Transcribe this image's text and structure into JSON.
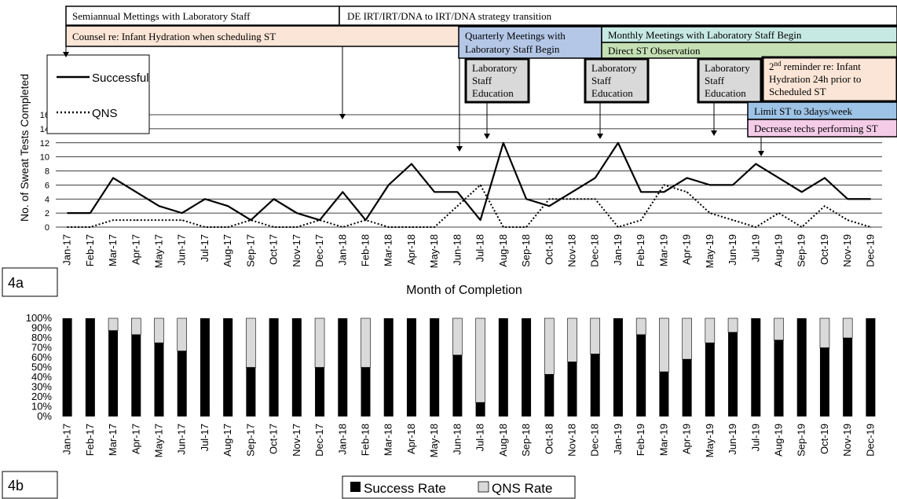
{
  "panel_a": {
    "label": "4a",
    "annotations": [
      {
        "id": "semiannual",
        "text": "Semiannual Mettings with Laboratory Staff",
        "fill": "#ffffff"
      },
      {
        "id": "de-irt",
        "text": "DE IRT/IRT/DNA to IRT/DNA strategy transition",
        "fill": "#ffffff"
      },
      {
        "id": "counsel",
        "text": "Counsel re: Infant Hydration when scheduling ST",
        "fill": "#fbe5d6"
      },
      {
        "id": "quarterly",
        "text": "Quarterly Meetings with Laboratory Staff Begin",
        "fill": "#b4c7e7"
      },
      {
        "id": "monthly",
        "text": "Monthly Meetings with Laboratory Staff Begin",
        "fill": "#c7e9e3"
      },
      {
        "id": "direct-obs",
        "text": "Direct ST Observation",
        "fill": "#c5e0b4"
      },
      {
        "id": "lab-edu-1",
        "text": "Laboratory Staff Education",
        "fill": "#d9d9d9"
      },
      {
        "id": "lab-edu-2",
        "text": "Laboratory Staff Education",
        "fill": "#d9d9d9"
      },
      {
        "id": "lab-edu-3",
        "text": "Laboratory Staff Education",
        "fill": "#d9d9d9"
      },
      {
        "id": "reminder",
        "sup": "nd",
        "text_pre": "2",
        "text_post": " reminder re: Infant Hydration 24h prior to Scheduled ST",
        "fill": "#fbe5d6"
      },
      {
        "id": "limit",
        "text": "Limit ST to 3days/week",
        "fill": "#9dc3e6"
      },
      {
        "id": "decrease",
        "text": "Decrease techs performing ST",
        "fill": "#f4cce8"
      }
    ]
  },
  "panel_b": {
    "label": "4b"
  },
  "chart_data": [
    {
      "type": "line",
      "xlabel": "Month of Completion",
      "ylabel": "No. of Sweat Tests Completed",
      "ylim": [
        0,
        16
      ],
      "yticks": [
        0,
        2,
        4,
        6,
        8,
        10,
        12,
        14,
        16
      ],
      "grid": true,
      "categories": [
        "Jan-17",
        "Feb-17",
        "Mar-17",
        "Apr-17",
        "May-17",
        "Jun-17",
        "Jul-17",
        "Aug-17",
        "Sep-17",
        "Oct-17",
        "Nov-17",
        "Dec-17",
        "Jan-18",
        "Feb-18",
        "Mar-18",
        "Apr-18",
        "May-18",
        "Jun-18",
        "Jul-18",
        "Aug-18",
        "Sep-18",
        "Oct-18",
        "Nov-18",
        "Dec-18",
        "Jan-19",
        "Feb-19",
        "Mar-19",
        "Apr-19",
        "May-19",
        "Jun-19",
        "Jul-19",
        "Aug-19",
        "Sep-19",
        "Oct-19",
        "Nov-19",
        "Dec-19"
      ],
      "legend_position": "top-left",
      "series": [
        {
          "name": "Successful",
          "style": "solid",
          "values": [
            2,
            2,
            7,
            5,
            3,
            2,
            4,
            3,
            1,
            4,
            2,
            1,
            5,
            1,
            6,
            9,
            5,
            5,
            1,
            12,
            4,
            3,
            5,
            7,
            12,
            5,
            5,
            7,
            6,
            6,
            9,
            7,
            5,
            7,
            4,
            4
          ]
        },
        {
          "name": "QNS",
          "style": "dotted",
          "values": [
            0,
            0,
            1,
            1,
            1,
            1,
            0,
            0,
            1,
            0,
            0,
            1,
            0,
            1,
            0,
            0,
            0,
            3,
            6,
            0,
            0,
            4,
            4,
            4,
            0,
            1,
            6,
            5,
            2,
            1,
            0,
            2,
            0,
            3,
            1,
            0
          ]
        }
      ]
    },
    {
      "type": "bar",
      "stacked": true,
      "ylim": [
        0,
        100
      ],
      "yticks": [
        "0%",
        "10%",
        "20%",
        "30%",
        "40%",
        "50%",
        "60%",
        "70%",
        "80%",
        "90%",
        "100%"
      ],
      "categories": [
        "Jan-17",
        "Feb-17",
        "Mar-17",
        "Apr-17",
        "May-17",
        "Jun-17",
        "Jul-17",
        "Aug-17",
        "Sep-17",
        "Oct-17",
        "Nov-17",
        "Dec-17",
        "Jan-18",
        "Feb-18",
        "Mar-18",
        "Apr-18",
        "May-18",
        "Jun-18",
        "Jul-18",
        "Aug-18",
        "Sep-18",
        "Oct-18",
        "Nov-18",
        "Dec-18",
        "Jan-19",
        "Feb-19",
        "Mar-19",
        "Apr-19",
        "May-19",
        "Jun-19",
        "Jul-19",
        "Aug-19",
        "Sep-19",
        "Oct-19",
        "Nov-19",
        "Dec-19"
      ],
      "legend_position": "bottom",
      "series": [
        {
          "name": "Success Rate",
          "color": "#000000",
          "values": [
            100,
            100,
            87.5,
            83.3,
            75,
            66.7,
            100,
            100,
            50,
            100,
            100,
            50,
            100,
            50,
            100,
            100,
            100,
            62.5,
            14.3,
            100,
            100,
            42.9,
            55.6,
            63.6,
            100,
            83.3,
            45.5,
            58.3,
            75,
            85.7,
            100,
            77.8,
            100,
            70,
            80,
            100
          ]
        },
        {
          "name": "QNS Rate",
          "color": "#d9d9d9",
          "values": [
            0,
            0,
            12.5,
            16.7,
            25,
            33.3,
            0,
            0,
            50,
            0,
            0,
            50,
            0,
            50,
            0,
            0,
            0,
            37.5,
            85.7,
            0,
            0,
            57.1,
            44.4,
            36.4,
            0,
            16.7,
            54.5,
            41.7,
            25,
            14.3,
            0,
            22.2,
            0,
            30,
            20,
            0
          ]
        }
      ]
    }
  ]
}
